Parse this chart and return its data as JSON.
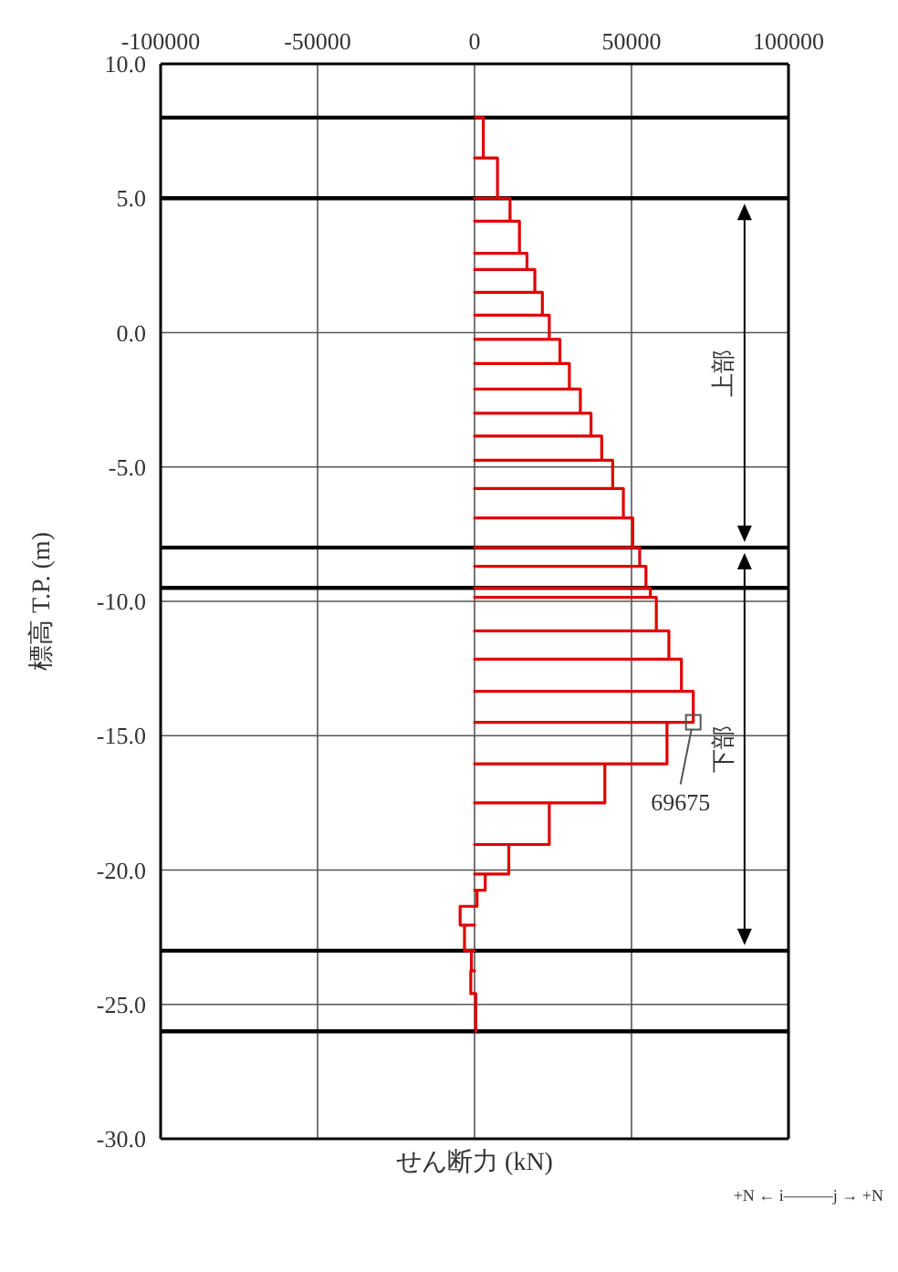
{
  "chart_data": {
    "type": "line",
    "xlabel": "せん断力 (kN)",
    "ylabel": "標高 T.P. (m)",
    "xlim": [
      -100000,
      100000
    ],
    "xticks": [
      -100000,
      -50000,
      0,
      50000,
      100000
    ],
    "ylim": [
      -30,
      10
    ],
    "yticks": [
      {
        "value": 10,
        "label": "10.0"
      },
      {
        "value": 5,
        "label": "5.0"
      },
      {
        "value": 0,
        "label": "0.0"
      },
      {
        "value": -5,
        "label": "-5.0"
      },
      {
        "value": -10,
        "label": "-10.0"
      },
      {
        "value": -15,
        "label": "-15.0"
      },
      {
        "value": -20,
        "label": "-20.0"
      },
      {
        "value": -25,
        "label": "-25.0"
      },
      {
        "value": -30,
        "label": "-30.0"
      }
    ],
    "grid": true,
    "marker": "none",
    "line_style": "solid",
    "series": [
      {
        "color": "#e00000",
        "x": [
          0,
          2800,
          2800,
          0,
          0,
          7300,
          7300,
          0,
          0,
          11300,
          11300,
          0,
          0,
          14300,
          14300,
          0,
          0,
          16700,
          16700,
          0,
          0,
          19200,
          19200,
          0,
          0,
          21600,
          21600,
          0,
          0,
          23800,
          23800,
          0,
          0,
          27200,
          27200,
          0,
          0,
          30200,
          30200,
          0,
          0,
          33700,
          33700,
          0,
          0,
          37100,
          37100,
          0,
          0,
          40500,
          40500,
          0,
          0,
          44000,
          44000,
          0,
          0,
          47400,
          47400,
          0,
          0,
          50400,
          50400,
          0,
          0,
          52600,
          52600,
          0,
          0,
          54600,
          54600,
          0,
          0,
          56000,
          56000,
          0,
          0,
          57900,
          57900,
          0,
          0,
          61900,
          61900,
          0,
          0,
          65900,
          65900,
          0,
          0,
          69675,
          69675,
          0,
          0,
          61300,
          61300,
          0,
          0,
          41500,
          41500,
          0,
          0,
          23800,
          23800,
          0,
          0,
          10900,
          10900,
          0,
          0,
          3400,
          3400,
          0,
          0,
          800,
          800,
          0,
          0,
          -4600,
          -4600,
          0,
          0,
          -3200,
          -3200,
          0,
          0,
          -1000,
          -1000,
          0,
          0,
          -1200,
          -1200,
          0,
          0,
          400,
          400,
          0
        ],
        "values": [
          8,
          8,
          6.5,
          6.5,
          6.5,
          6.5,
          5,
          5,
          5,
          5,
          4.15,
          4.15,
          4.15,
          4.15,
          2.95,
          2.95,
          2.95,
          2.95,
          2.35,
          2.35,
          2.35,
          2.35,
          1.5,
          1.5,
          1.5,
          1.5,
          0.65,
          0.65,
          0.65,
          0.65,
          -0.25,
          -0.25,
          -0.25,
          -0.25,
          -1.15,
          -1.15,
          -1.15,
          -1.15,
          -2.1,
          -2.1,
          -2.1,
          -2.1,
          -3,
          -3,
          -3,
          -3,
          -3.85,
          -3.85,
          -3.85,
          -3.85,
          -4.75,
          -4.75,
          -4.75,
          -4.75,
          -5.8,
          -5.8,
          -5.8,
          -5.8,
          -6.9,
          -6.9,
          -6.9,
          -6.9,
          -8,
          -8,
          -8,
          -8,
          -8.7,
          -8.7,
          -8.7,
          -8.7,
          -9.5,
          -9.5,
          -9.5,
          -9.5,
          -9.85,
          -9.85,
          -9.85,
          -9.85,
          -11.1,
          -11.1,
          -11.1,
          -11.1,
          -12.15,
          -12.15,
          -12.15,
          -12.15,
          -13.35,
          -13.35,
          -13.35,
          -13.35,
          -14.5,
          -14.5,
          -14.5,
          -14.5,
          -16.05,
          -16.05,
          -16.05,
          -16.05,
          -17.5,
          -17.5,
          -17.5,
          -17.5,
          -19.05,
          -19.05,
          -19.05,
          -19.05,
          -20.15,
          -20.15,
          -20.15,
          -20.15,
          -20.75,
          -20.75,
          -20.75,
          -20.75,
          -21.35,
          -21.35,
          -21.35,
          -21.35,
          -22.05,
          -22.05,
          -22.05,
          -22.05,
          -23,
          -23,
          -23,
          -23,
          -23.75,
          -23.75,
          -23.75,
          -23.75,
          -24.6,
          -24.6,
          -24.6,
          -24.6,
          -26,
          -26
        ]
      }
    ],
    "ref_lines": [
      {
        "axis": "y",
        "value": 8,
        "color": "#000000"
      },
      {
        "axis": "y",
        "value": 5,
        "color": "#000000"
      },
      {
        "axis": "y",
        "value": -8,
        "color": "#000000"
      },
      {
        "axis": "y",
        "value": -9.5,
        "color": "#000000"
      },
      {
        "axis": "y",
        "value": -23,
        "color": "#000000"
      },
      {
        "axis": "y",
        "value": -26,
        "color": "#000000"
      }
    ],
    "annotations": [
      "上部",
      "下部",
      {
        "text": "69675",
        "x": 69675,
        "y": -14.5
      },
      "+N ← i———j → +N"
    ]
  }
}
